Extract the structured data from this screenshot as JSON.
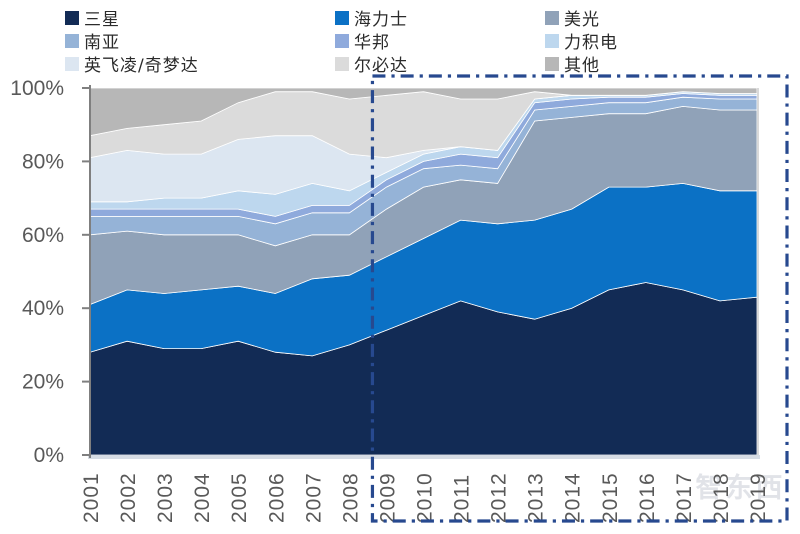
{
  "watermark": "智东西",
  "chart_data": {
    "type": "area",
    "stacked": true,
    "percent_stacked": true,
    "legend_position": "top",
    "grid": false,
    "xlabel": "",
    "ylabel": "",
    "ylim": [
      0,
      100
    ],
    "ytick_labels": [
      "0%",
      "20%",
      "40%",
      "60%",
      "80%",
      "100%"
    ],
    "yticks": [
      0,
      20,
      40,
      60,
      80,
      100
    ],
    "x": [
      "2001",
      "2002",
      "2003",
      "2004",
      "2005",
      "2006",
      "2007",
      "2008",
      "2009",
      "2010",
      "2011",
      "2012",
      "2013",
      "2014",
      "2015",
      "2016",
      "2017",
      "2018",
      "2019"
    ],
    "series": [
      {
        "name": "三星",
        "color": "#122B55",
        "values": [
          28,
          31,
          29,
          29,
          31,
          28,
          27,
          30,
          34,
          38,
          42,
          39,
          37,
          40,
          45,
          47,
          45,
          42,
          43
        ]
      },
      {
        "name": "海力士",
        "color": "#0B71C5",
        "values": [
          13,
          14,
          15,
          16,
          15,
          16,
          21,
          19,
          20,
          21,
          22,
          24,
          27,
          27,
          28,
          26,
          29,
          30,
          29
        ]
      },
      {
        "name": "美光",
        "color": "#90A2B8",
        "values": [
          19,
          16,
          16,
          15,
          14,
          13,
          12,
          11,
          13,
          14,
          11,
          11,
          27,
          25,
          20,
          20,
          21,
          22,
          22
        ]
      },
      {
        "name": "南亚",
        "color": "#95B3D7",
        "values": [
          5,
          4,
          5,
          5,
          5,
          6,
          6,
          6,
          6,
          5,
          4,
          4,
          3,
          3,
          3,
          3,
          2.5,
          3,
          3
        ]
      },
      {
        "name": "华邦",
        "color": "#8FAADC",
        "values": [
          2,
          2,
          2,
          2,
          2,
          2,
          2,
          2,
          2,
          2,
          3,
          3,
          2,
          2,
          1.5,
          1.5,
          1,
          1,
          1
        ]
      },
      {
        "name": "力积电",
        "color": "#BDD7EE",
        "values": [
          2,
          2,
          3,
          3,
          5,
          6,
          6,
          4,
          2,
          2,
          2,
          2,
          1,
          1,
          0.5,
          0.5,
          0.5,
          0.5,
          0.5
        ]
      },
      {
        "name": "英飞凌/奇梦达",
        "color": "#DCE6F1",
        "values": [
          12,
          14,
          12,
          12,
          14,
          16,
          13,
          10,
          4,
          1,
          0,
          0,
          0,
          0,
          0,
          0,
          0,
          0,
          0
        ]
      },
      {
        "name": "尔必达",
        "color": "#DBDBDB",
        "values": [
          6,
          6,
          8,
          9,
          10,
          12,
          12,
          15,
          17,
          16,
          13,
          14,
          2,
          0,
          0,
          0,
          0,
          0,
          0
        ]
      },
      {
        "name": "其他",
        "color": "#B7B7B7",
        "values": [
          13,
          11,
          10,
          9,
          4,
          1,
          1,
          3,
          2,
          1,
          3,
          3,
          1,
          2,
          2,
          2,
          1,
          1.5,
          1.5
        ]
      }
    ],
    "annotation_box": {
      "style": "dash-dot",
      "color": "#27498F",
      "from_x": "2009",
      "to_x": "2019"
    }
  }
}
